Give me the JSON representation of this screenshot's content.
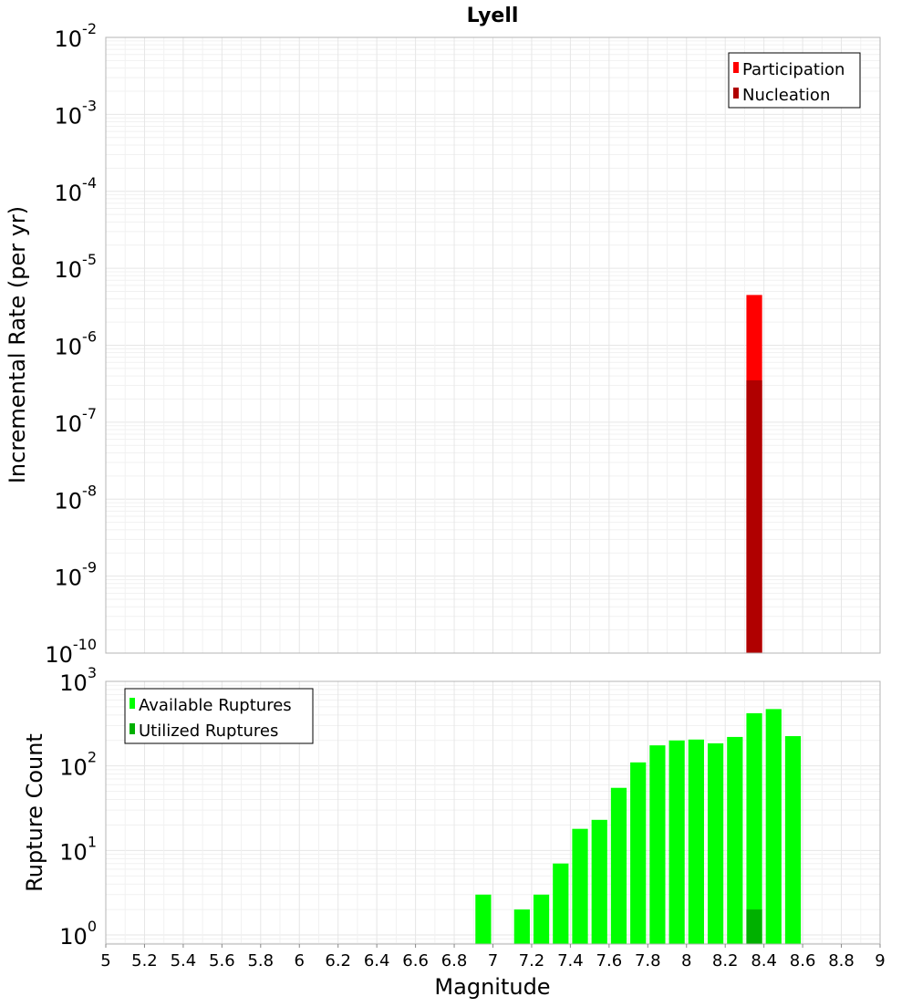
{
  "chart_data": [
    {
      "type": "bar",
      "title": "Lyell",
      "ylabel": "Incremental Rate (per yr)",
      "yscale": "log",
      "ylim": [
        1e-10,
        0.01
      ],
      "xlim": [
        5,
        9
      ],
      "y_tick_labels": [
        {
          "base": "10",
          "exp": "-2"
        },
        {
          "base": "10",
          "exp": "-3"
        },
        {
          "base": "10",
          "exp": "-4"
        },
        {
          "base": "10",
          "exp": "-5"
        },
        {
          "base": "10",
          "exp": "-6"
        },
        {
          "base": "10",
          "exp": "-7"
        },
        {
          "base": "10",
          "exp": "-8"
        },
        {
          "base": "10",
          "exp": "-9"
        },
        {
          "base": "10",
          "exp": "-10"
        }
      ],
      "legend_position": "top-right",
      "grid": true,
      "series": [
        {
          "name": "Participation",
          "color": "#ff0000",
          "points": [
            {
              "x": 8.35,
              "y": 4.5e-06
            }
          ]
        },
        {
          "name": "Nucleation",
          "color": "#b00000",
          "points": [
            {
              "x": 8.35,
              "y": 3.5e-07
            }
          ]
        }
      ]
    },
    {
      "type": "bar",
      "xlabel": "Magnitude",
      "ylabel": "Rupture Count",
      "yscale": "log",
      "ylim": [
        0.78,
        1000
      ],
      "xlim": [
        5,
        9
      ],
      "x_tick_labels": [
        "5",
        "5.2",
        "5.4",
        "5.6",
        "5.8",
        "6",
        "6.2",
        "6.4",
        "6.6",
        "6.8",
        "7",
        "7.2",
        "7.4",
        "7.6",
        "7.8",
        "8",
        "8.2",
        "8.4",
        "8.6",
        "8.8",
        "9"
      ],
      "y_tick_labels": [
        {
          "base": "10",
          "exp": "3"
        },
        {
          "base": "10",
          "exp": "2"
        },
        {
          "base": "10",
          "exp": "1"
        },
        {
          "base": "10",
          "exp": "0"
        }
      ],
      "legend_position": "top-left",
      "grid": true,
      "series": [
        {
          "name": "Available Ruptures",
          "color": "#00ff00",
          "points": [
            {
              "x": 6.95,
              "y": 3
            },
            {
              "x": 7.15,
              "y": 2
            },
            {
              "x": 7.25,
              "y": 3
            },
            {
              "x": 7.35,
              "y": 7
            },
            {
              "x": 7.45,
              "y": 18
            },
            {
              "x": 7.55,
              "y": 23
            },
            {
              "x": 7.65,
              "y": 55
            },
            {
              "x": 7.75,
              "y": 110
            },
            {
              "x": 7.85,
              "y": 175
            },
            {
              "x": 7.95,
              "y": 200
            },
            {
              "x": 8.05,
              "y": 205
            },
            {
              "x": 8.15,
              "y": 185
            },
            {
              "x": 8.25,
              "y": 220
            },
            {
              "x": 8.35,
              "y": 420
            },
            {
              "x": 8.45,
              "y": 470
            },
            {
              "x": 8.55,
              "y": 225
            }
          ]
        },
        {
          "name": "Utilized Ruptures",
          "color": "#00b000",
          "points": [
            {
              "x": 8.35,
              "y": 2
            }
          ]
        }
      ]
    }
  ]
}
